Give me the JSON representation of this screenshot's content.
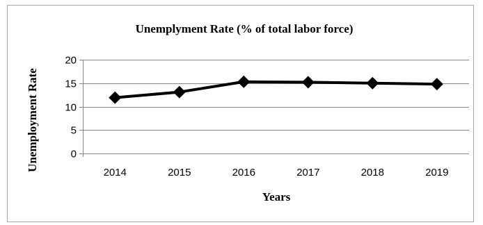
{
  "chart_data": {
    "type": "line",
    "title": "Unemplyment Rate (% of total labor force)",
    "xlabel": "Years",
    "ylabel": "Unemployment Rate",
    "categories": [
      "2014",
      "2015",
      "2016",
      "2017",
      "2018",
      "2019"
    ],
    "series": [
      {
        "values": [
          11.9,
          13.1,
          15.3,
          15.2,
          15.0,
          14.8
        ],
        "color": "#000000",
        "marker": "diamond"
      }
    ],
    "ylim": [
      0,
      20
    ],
    "yticks": [
      0,
      5,
      10,
      15,
      20
    ],
    "grid": true,
    "legend": "none"
  }
}
